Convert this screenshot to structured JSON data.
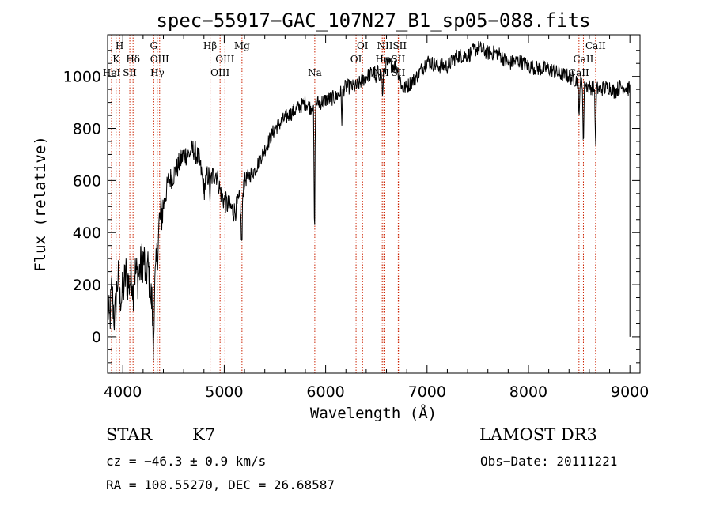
{
  "chart_data": {
    "type": "line",
    "title": "spec−55917−GAC_107N27_B1_sp05−088.fits",
    "xlabel": "Wavelength (Å)",
    "ylabel": "Flux (relative)",
    "xlim": [
      3850,
      9100
    ],
    "ylim": [
      -140,
      1160
    ],
    "x_ticks": [
      4000,
      5000,
      6000,
      7000,
      8000,
      9000
    ],
    "y_ticks": [
      0,
      200,
      400,
      600,
      800,
      1000
    ],
    "series": [
      {
        "name": "spectrum",
        "anchors": [
          [
            3850,
            120
          ],
          [
            3870,
            50
          ],
          [
            3890,
            180
          ],
          [
            3920,
            60
          ],
          [
            3950,
            230
          ],
          [
            3990,
            150
          ],
          [
            4030,
            240
          ],
          [
            4060,
            200
          ],
          [
            4100,
            260
          ],
          [
            4150,
            230
          ],
          [
            4200,
            300
          ],
          [
            4250,
            260
          ],
          [
            4280,
            150
          ],
          [
            4300,
            100
          ],
          [
            4330,
            260
          ],
          [
            4360,
            440
          ],
          [
            4400,
            500
          ],
          [
            4450,
            600
          ],
          [
            4500,
            620
          ],
          [
            4550,
            660
          ],
          [
            4600,
            700
          ],
          [
            4650,
            700
          ],
          [
            4700,
            720
          ],
          [
            4750,
            680
          ],
          [
            4780,
            620
          ],
          [
            4800,
            560
          ],
          [
            4830,
            620
          ],
          [
            4870,
            610
          ],
          [
            4920,
            630
          ],
          [
            4960,
            560
          ],
          [
            5000,
            520
          ],
          [
            5050,
            500
          ],
          [
            5100,
            480
          ],
          [
            5150,
            520
          ],
          [
            5200,
            600
          ],
          [
            5300,
            640
          ],
          [
            5400,
            720
          ],
          [
            5500,
            800
          ],
          [
            5600,
            840
          ],
          [
            5700,
            870
          ],
          [
            5800,
            900
          ],
          [
            5850,
            880
          ],
          [
            5893,
            900
          ],
          [
            5950,
            900
          ],
          [
            6000,
            910
          ],
          [
            6100,
            920
          ],
          [
            6200,
            960
          ],
          [
            6300,
            960
          ],
          [
            6400,
            1000
          ],
          [
            6500,
            1020
          ],
          [
            6563,
            1000
          ],
          [
            6600,
            1050
          ],
          [
            6700,
            1040
          ],
          [
            6760,
            950
          ],
          [
            6800,
            960
          ],
          [
            6900,
            1000
          ],
          [
            7000,
            1060
          ],
          [
            7100,
            1040
          ],
          [
            7200,
            1040
          ],
          [
            7300,
            1080
          ],
          [
            7400,
            1080
          ],
          [
            7500,
            1110
          ],
          [
            7600,
            1090
          ],
          [
            7700,
            1090
          ],
          [
            7800,
            1050
          ],
          [
            7900,
            1060
          ],
          [
            8000,
            1040
          ],
          [
            8100,
            1030
          ],
          [
            8200,
            1030
          ],
          [
            8300,
            1010
          ],
          [
            8400,
            1000
          ],
          [
            8500,
            980
          ],
          [
            8600,
            960
          ],
          [
            8700,
            950
          ],
          [
            8800,
            960
          ],
          [
            8850,
            940
          ],
          [
            8900,
            960
          ],
          [
            8950,
            960
          ],
          [
            9000,
            950
          ]
        ],
        "absorption": [
          [
            3970,
            60
          ],
          [
            4101,
            90
          ],
          [
            4227,
            120
          ],
          [
            4300,
            180
          ],
          [
            4861,
            80
          ],
          [
            5167,
            120
          ],
          [
            5175,
            180
          ],
          [
            5890,
            520
          ],
          [
            6160,
            110
          ],
          [
            6495,
            60
          ],
          [
            6563,
            80
          ],
          [
            8498,
            150
          ],
          [
            8542,
            240
          ],
          [
            8662,
            230
          ]
        ]
      }
    ],
    "lines": [
      {
        "name": "H",
        "wavelength": 3968,
        "row": 0
      },
      {
        "name": "K",
        "wavelength": 3934,
        "row": 1
      },
      {
        "name": "HeI",
        "wavelength": 3889,
        "row": 2
      },
      {
        "name": "SII",
        "wavelength": 4069,
        "row": 2
      },
      {
        "name": "Hδ",
        "wavelength": 4101,
        "row": 1
      },
      {
        "name": "G",
        "wavelength": 4305,
        "row": 0
      },
      {
        "name": "OIII",
        "wavelength": 4363,
        "row": 1
      },
      {
        "name": "Hγ",
        "wavelength": 4340,
        "row": 2
      },
      {
        "name": "Hβ",
        "wavelength": 4861,
        "row": 0
      },
      {
        "name": "OIII",
        "wavelength": 5007,
        "row": 1
      },
      {
        "name": "OIII",
        "wavelength": 4959,
        "row": 2
      },
      {
        "name": "Mg",
        "wavelength": 5175,
        "row": 0
      },
      {
        "name": "Na",
        "wavelength": 5893,
        "row": 2
      },
      {
        "name": "OI",
        "wavelength": 6364,
        "row": 0
      },
      {
        "name": "OI",
        "wavelength": 6300,
        "row": 1
      },
      {
        "name": "NII",
        "wavelength": 6584,
        "row": 0
      },
      {
        "name": "Hα",
        "wavelength": 6563,
        "row": 1
      },
      {
        "name": "NII",
        "wavelength": 6548,
        "row": 2
      },
      {
        "name": "SII",
        "wavelength": 6731,
        "row": 0
      },
      {
        "name": "SII",
        "wavelength": 6716,
        "row": 1
      },
      {
        "name": "SII",
        "wavelength": 6717,
        "row": 2
      },
      {
        "name": "CaII",
        "wavelength": 8662,
        "row": 0
      },
      {
        "name": "CaII",
        "wavelength": 8542,
        "row": 1
      },
      {
        "name": "CaII",
        "wavelength": 8498,
        "row": 2
      }
    ]
  },
  "info": {
    "class_label": "STAR",
    "subclass": "K7",
    "survey": "LAMOST DR3",
    "cz": "cz = −46.3 ± 0.9 km/s",
    "obs_date": "Obs−Date: 20111221",
    "coords": "RA = 108.55270, DEC =  26.68587"
  },
  "colors": {
    "line_marker": "#cc2200",
    "spectrum": "#000000",
    "axes": "#000000"
  }
}
